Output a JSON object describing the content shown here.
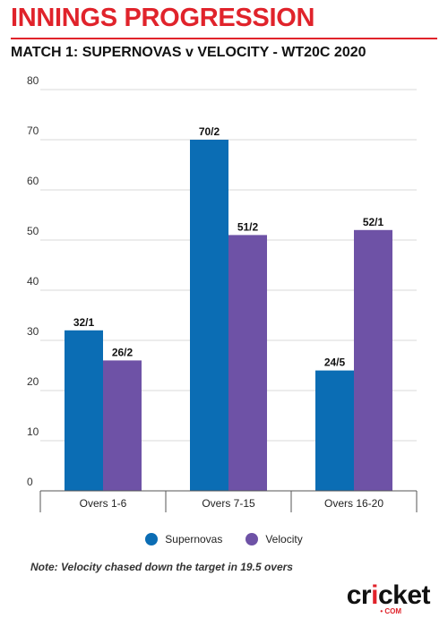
{
  "header": {
    "title": "INNINGS PROGRESSION",
    "subtitle": "MATCH 1: SUPERNOVAS v VELOCITY - WT20C 2020"
  },
  "colors": {
    "accent": "#e0232b",
    "supernovas": "#0b6db4",
    "velocity": "#6e52a6"
  },
  "chart_data": {
    "type": "bar",
    "categories": [
      "Overs 1-6",
      "Overs 7-15",
      "Overs 16-20"
    ],
    "series": [
      {
        "name": "Supernovas",
        "values": [
          32,
          70,
          24
        ],
        "labels": [
          "32/1",
          "70/2",
          "24/5"
        ],
        "color": "#0b6db4"
      },
      {
        "name": "Velocity",
        "values": [
          26,
          51,
          52
        ],
        "labels": [
          "26/2",
          "51/2",
          "52/1"
        ],
        "color": "#6e52a6"
      }
    ],
    "yticks": [
      "0",
      "10",
      "20",
      "30",
      "40",
      "50",
      "60",
      "70",
      "80"
    ],
    "ylim": [
      0,
      80
    ],
    "grid": true,
    "legend_position": "bottom"
  },
  "note": "Note: Velocity chased down the target in 19.5 overs",
  "logo": {
    "text": "cricket",
    "suffix": "COM"
  }
}
